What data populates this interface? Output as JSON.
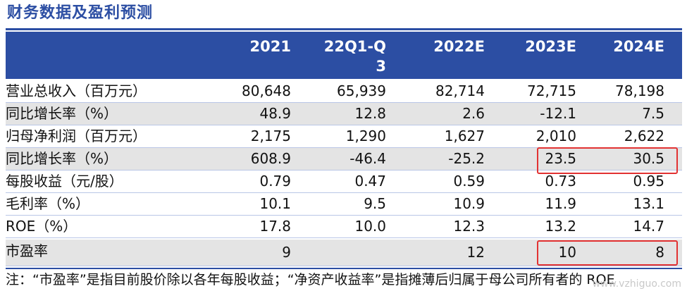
{
  "title": "财务数据及盈利预测",
  "columns": [
    "2021",
    "22Q1-Q\n3",
    "2022E",
    "2023E",
    "2024E"
  ],
  "rows": [
    {
      "label": "营业总收入（百万元）",
      "values": [
        "80,648",
        "65,939",
        "82,714",
        "72,715",
        "78,198"
      ]
    },
    {
      "label": "同比增长率（%）",
      "values": [
        "48.9",
        "12.8",
        "2.6",
        "-12.1",
        "7.5"
      ]
    },
    {
      "label": "归母净利润（百万元）",
      "values": [
        "2,175",
        "1,290",
        "1,627",
        "2,010",
        "2,622"
      ]
    },
    {
      "label": "同比增长率（%）",
      "values": [
        "608.9",
        "-46.4",
        "-25.2",
        "23.5",
        "30.5"
      ]
    },
    {
      "label": "每股收益（元/股）",
      "values": [
        "0.79",
        "0.47",
        "0.59",
        "0.73",
        "0.95"
      ]
    },
    {
      "label": "毛利率（%）",
      "values": [
        "10.1",
        "9.5",
        "10.9",
        "11.9",
        "13.1"
      ]
    },
    {
      "label": "ROE（%）",
      "values": [
        "17.8",
        "10.0",
        "12.3",
        "13.2",
        "14.7"
      ]
    },
    {
      "label": "市盈率",
      "values": [
        "9",
        "",
        "12",
        "10",
        "8"
      ]
    }
  ],
  "footnote": "注：“市盈率”是指目前股价除以各年每股收益；“净资产收益率”是指摊薄后归属于母公司所有者的 ROE",
  "watermark": "www.vzhiguo.com",
  "colors": {
    "header": "#2c4ea3",
    "shade": "#e4e4e4",
    "highlight": "#e23232"
  }
}
